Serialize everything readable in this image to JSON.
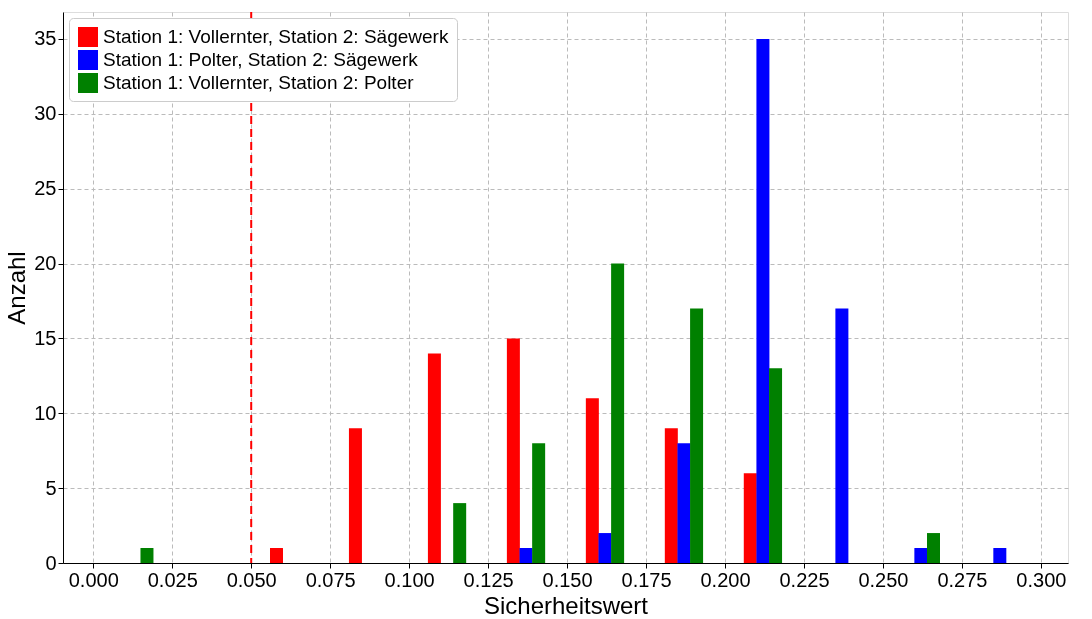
{
  "chart_data": {
    "type": "bar",
    "xlabel": "Sicherheitswert",
    "ylabel": "Anzahl",
    "xlim": [
      -0.008,
      0.307
    ],
    "xticks": [
      {
        "value": 0,
        "label": "0.000"
      },
      0.025,
      {
        "value": 0.05,
        "label": "0.050"
      },
      0.075,
      {
        "value": 0.1,
        "label": "0.100"
      },
      0.125,
      {
        "value": 0.15,
        "label": "0.150"
      },
      0.175,
      {
        "value": 0.2,
        "label": "0.200"
      },
      0.225,
      {
        "value": 0.25,
        "label": "0.250"
      },
      0.275,
      {
        "value": 0.3,
        "label": "0.300"
      }
    ],
    "ylim": [
      0,
      36.8
    ],
    "yticks": [
      0,
      5,
      10,
      15,
      20,
      25,
      30,
      35
    ],
    "series": [
      {
        "name": "Station 1: Vollernter, Station 2: Sägewerk",
        "color": "#ff0000",
        "x": [
          0.058,
          0.083,
          0.108,
          0.133,
          0.158,
          0.183,
          0.208
        ],
        "values": [
          1,
          9,
          14,
          15,
          11,
          9,
          6
        ]
      },
      {
        "name": "Station 1: Polter, Station 2: Sägewerk",
        "color": "#0000ff",
        "x": [
          0.137,
          0.162,
          0.187,
          0.212,
          0.237,
          0.262,
          0.287
        ],
        "values": [
          1,
          2,
          8,
          35,
          17,
          1,
          1
        ]
      },
      {
        "name": "Station 1: Vollernter, Station 2: Polter",
        "color": "#008000",
        "x": [
          0.017,
          0.116,
          0.141,
          0.166,
          0.191,
          0.216,
          0.266
        ],
        "values": [
          1,
          4,
          8,
          20,
          17,
          13,
          2
        ]
      }
    ],
    "ref_lines": [
      {
        "axis": "x",
        "value": 0.05,
        "label": null,
        "color": "#ff0000",
        "line_style": "dashed"
      }
    ],
    "grid": true,
    "legend": "top left"
  }
}
